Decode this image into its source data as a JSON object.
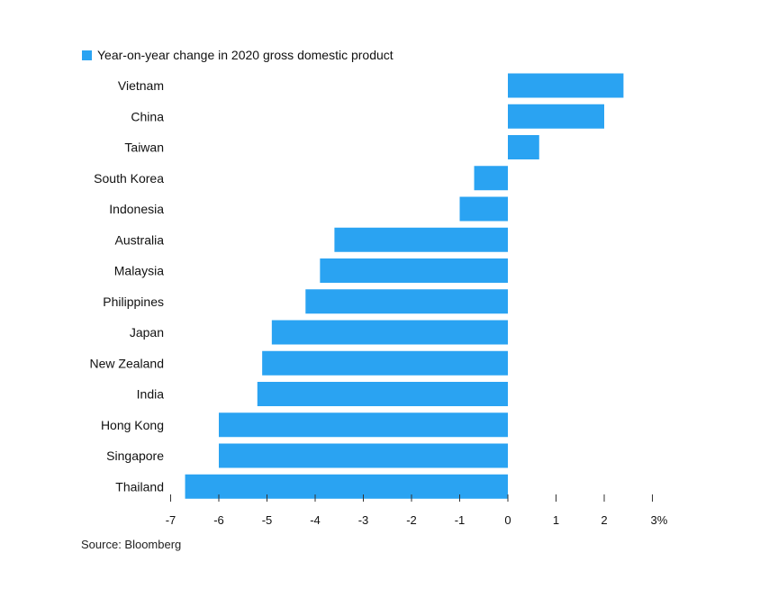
{
  "chart_data": {
    "type": "bar",
    "orientation": "horizontal",
    "legend": "Year-on-year change in 2020 gross domestic product",
    "legend_position": "top-left",
    "color": "#2aa3f2",
    "categories": [
      "Vietnam",
      "China",
      "Taiwan",
      "South Korea",
      "Indonesia",
      "Australia",
      "Malaysia",
      "Philippines",
      "Japan",
      "New Zealand",
      "India",
      "Hong Kong",
      "Singapore",
      "Thailand"
    ],
    "values": [
      2.4,
      2.0,
      0.65,
      -0.7,
      -1.0,
      -3.6,
      -3.9,
      -4.2,
      -4.9,
      -5.1,
      -5.2,
      -6.0,
      -6.0,
      -6.7
    ],
    "xlim": [
      -7,
      3
    ],
    "ticks": [
      -7,
      -6,
      -5,
      -4,
      -3,
      -2,
      -1,
      0,
      1,
      2,
      3
    ],
    "tick_labels": [
      "-7",
      "-6",
      "-5",
      "-4",
      "-3",
      "-2",
      "-1",
      "0",
      "1",
      "2",
      "3%"
    ],
    "grid": false
  },
  "source": "Source: Bloomberg"
}
